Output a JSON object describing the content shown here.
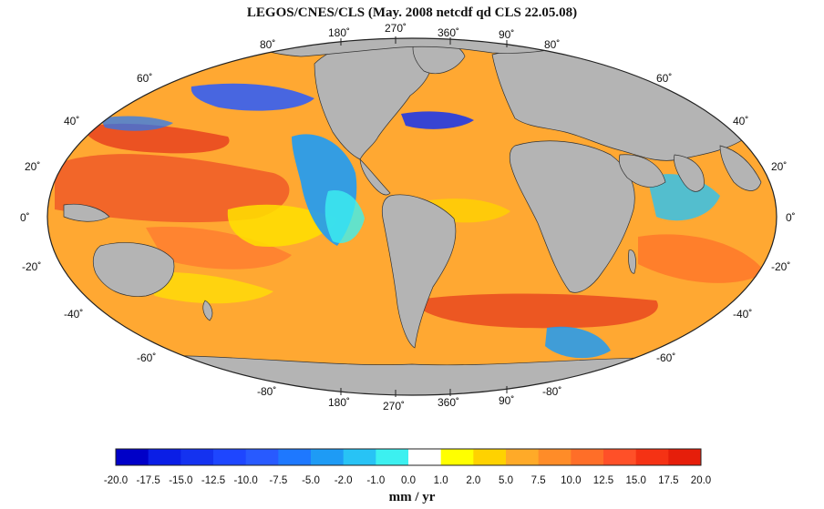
{
  "title": "LEGOS/CNES/CLS  (May. 2008 netcdf qd CLS 22.05.08)",
  "projection": "Mollweide-like world map",
  "longitude_labels_top": [
    "180˚",
    "270˚",
    "360˚",
    "90˚"
  ],
  "longitude_labels_bottom": [
    "180˚",
    "270˚",
    "360˚",
    "90˚"
  ],
  "latitude_labels_left": [
    "80˚",
    "60˚",
    "40˚",
    "20˚",
    "0˚",
    "-20˚",
    "-40˚",
    "-60˚",
    "-80˚"
  ],
  "latitude_labels_right": [
    "80˚",
    "60˚",
    "40˚",
    "20˚",
    "0˚",
    "-20˚",
    "-40˚",
    "-60˚",
    "-80˚"
  ],
  "colorbar": {
    "tick_labels": [
      "-20.0",
      "-17.5",
      "-15.0",
      "-12.5",
      "-10.0",
      "-7.5",
      "-5.0",
      "-2.0",
      "-1.0",
      "0.0",
      "1.0",
      "2.0",
      "5.0",
      "7.5",
      "10.0",
      "12.5",
      "15.0",
      "17.5",
      "20.0"
    ],
    "colors": [
      "#0000c8",
      "#0a1ee6",
      "#1432f0",
      "#1e46ff",
      "#285aff",
      "#1e78ff",
      "#1e9bf5",
      "#28c3f5",
      "#3cf0f0",
      "#ffffff",
      "#ffff00",
      "#ffd200",
      "#ffaa28",
      "#ff8c28",
      "#ff6e28",
      "#ff5028",
      "#f53214",
      "#e61e0a"
    ],
    "units": "mm / yr"
  },
  "colors": {
    "land": "#b4b4b4",
    "ocean_base": "#ffa832",
    "coast": "#333333"
  }
}
